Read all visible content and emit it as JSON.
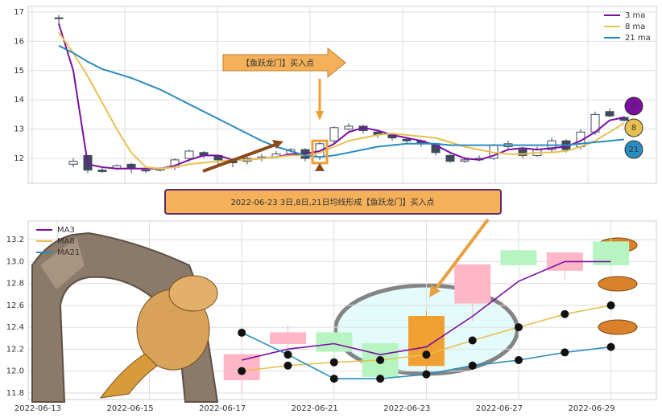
{
  "chart_data": [
    {
      "type": "candlestick",
      "open": [
        16.8,
        11.8,
        12.1,
        11.6,
        11.65,
        11.8,
        11.6,
        11.6,
        11.7,
        12.0,
        12.2,
        12.1,
        11.95,
        11.9,
        12.0,
        12.05,
        12.15,
        12.3,
        12.05,
        12.6,
        13.0,
        13.1,
        12.9,
        12.8,
        12.65,
        12.6,
        12.45,
        12.1,
        11.9,
        11.95,
        12.0,
        12.4,
        12.3,
        12.1,
        12.3,
        12.6,
        12.4,
        12.9,
        13.6,
        13.4
      ],
      "high": [
        16.9,
        12.0,
        12.1,
        11.7,
        11.8,
        11.85,
        11.7,
        11.7,
        12.0,
        12.3,
        12.25,
        12.1,
        12.0,
        12.05,
        12.15,
        12.25,
        12.35,
        12.35,
        12.55,
        13.1,
        13.2,
        13.15,
        12.95,
        12.85,
        12.7,
        12.65,
        12.5,
        12.15,
        12.05,
        12.1,
        12.5,
        12.6,
        12.35,
        12.4,
        12.7,
        12.65,
        13.0,
        13.6,
        13.7,
        13.45
      ],
      "low": [
        16.6,
        11.7,
        11.5,
        11.5,
        11.6,
        11.5,
        11.5,
        11.55,
        11.6,
        11.9,
        12.0,
        11.8,
        11.7,
        11.8,
        11.9,
        12.0,
        12.1,
        11.9,
        11.95,
        12.5,
        12.95,
        12.85,
        12.7,
        12.6,
        12.5,
        12.4,
        12.1,
        11.85,
        11.85,
        11.9,
        11.95,
        12.3,
        12.0,
        12.05,
        12.2,
        12.2,
        12.3,
        12.8,
        13.4,
        13.25
      ],
      "close": [
        16.8,
        11.9,
        11.6,
        11.55,
        11.75,
        11.65,
        11.6,
        11.65,
        11.95,
        12.25,
        12.1,
        11.95,
        11.85,
        12.0,
        12.05,
        12.15,
        12.3,
        12.0,
        12.5,
        13.05,
        13.1,
        12.95,
        12.8,
        12.7,
        12.6,
        12.5,
        12.2,
        11.9,
        11.95,
        12.0,
        12.45,
        12.5,
        12.1,
        12.3,
        12.6,
        12.3,
        12.9,
        13.5,
        13.45,
        13.3
      ],
      "up_color": "#ffffff",
      "down_color": "#3c4a5c",
      "series": [
        {
          "name": "3 ma",
          "color": "#7b0fa0",
          "values": [
            16.6,
            15.0,
            11.8,
            11.7,
            11.65,
            11.65,
            11.65,
            11.65,
            11.75,
            11.95,
            12.1,
            12.1,
            11.95,
            11.95,
            12.0,
            12.05,
            12.15,
            12.15,
            12.25,
            12.5,
            12.9,
            13.05,
            12.95,
            12.8,
            12.7,
            12.6,
            12.45,
            12.2,
            12.0,
            11.95,
            12.1,
            12.3,
            12.35,
            12.3,
            12.35,
            12.4,
            12.6,
            12.9,
            13.3,
            13.4
          ]
        },
        {
          "name": "8 ma",
          "color": "#e8c050",
          "values": [
            16.3,
            15.6,
            14.8,
            13.9,
            13.0,
            12.2,
            11.7,
            11.65,
            11.7,
            11.8,
            11.85,
            11.9,
            11.95,
            11.95,
            12.0,
            12.05,
            12.1,
            12.1,
            12.2,
            12.4,
            12.6,
            12.7,
            12.8,
            12.85,
            12.8,
            12.75,
            12.7,
            12.55,
            12.4,
            12.3,
            12.2,
            12.15,
            12.15,
            12.2,
            12.2,
            12.25,
            12.4,
            12.6,
            12.9,
            13.2
          ]
        },
        {
          "name": "21 ma",
          "color": "#2a8cc0",
          "values": [
            15.85,
            15.6,
            15.3,
            15.05,
            14.9,
            14.75,
            14.55,
            14.35,
            14.1,
            13.85,
            13.6,
            13.35,
            13.1,
            12.85,
            12.6,
            12.4,
            12.25,
            12.1,
            12.05,
            12.1,
            12.2,
            12.3,
            12.4,
            12.45,
            12.5,
            12.5,
            12.5,
            12.45,
            12.45,
            12.45,
            12.45,
            12.45,
            12.45,
            12.45,
            12.45,
            12.45,
            12.5,
            12.55,
            12.6,
            12.65
          ]
        }
      ],
      "ylim": [
        11.15,
        17.19
      ],
      "yticks": [
        12,
        13,
        14,
        15,
        16,
        17
      ],
      "grid": true,
      "legend": "upper right",
      "annotation": "【鱼跃龙门】买入点",
      "end_labels": [
        "3",
        "8",
        "21"
      ]
    },
    {
      "type": "candlestick",
      "title": "2022-06-23 3日,8日,21日均线形成【鱼跃龙门】买入点",
      "categories": [
        "2022-06-13",
        null,
        "2022-06-15",
        null,
        "2022-06-17",
        null,
        "2022-06-21",
        null,
        "2022-06-23",
        null,
        "2022-06-27",
        null,
        "2022-06-29",
        null
      ],
      "open": [
        null,
        null,
        null,
        null,
        11.92,
        12.25,
        12.35,
        12.25,
        12.05,
        12.62,
        13.1,
        12.92,
        13.18,
        null
      ],
      "high": [
        null,
        null,
        null,
        null,
        12.15,
        12.42,
        12.35,
        12.25,
        12.55,
        12.97,
        13.2,
        13.08,
        13.25,
        null
      ],
      "low": [
        null,
        null,
        null,
        null,
        11.8,
        12.2,
        12.1,
        11.95,
        11.95,
        12.45,
        12.9,
        12.83,
        12.95,
        null
      ],
      "close": [
        null,
        null,
        null,
        null,
        12.15,
        12.35,
        12.18,
        11.95,
        12.5,
        12.97,
        12.97,
        13.08,
        12.97,
        null
      ],
      "colors": [
        null,
        null,
        null,
        null,
        "#ffb6c6",
        "#ffb6c6",
        "#b6f5c2",
        "#b6f5c2",
        "#f0a030",
        "#ffb6c6",
        "#b6f5c2",
        "#ffb6c6",
        "#b6f5c2",
        null
      ],
      "series": [
        {
          "name": "MA3",
          "color": "#7b0fa0",
          "values": [
            null,
            null,
            null,
            null,
            12.1,
            12.2,
            12.25,
            12.15,
            12.22,
            12.5,
            12.82,
            13.0,
            13.0,
            null
          ]
        },
        {
          "name": "MA8",
          "color": "#e8c050",
          "markers": true,
          "values": [
            null,
            null,
            null,
            null,
            12.0,
            12.05,
            12.08,
            12.1,
            12.15,
            12.28,
            12.4,
            12.52,
            12.6,
            null
          ]
        },
        {
          "name": "MA21",
          "color": "#2a8cc0",
          "markers": true,
          "values": [
            null,
            null,
            null,
            null,
            12.35,
            12.15,
            11.93,
            11.93,
            11.97,
            12.05,
            12.1,
            12.17,
            12.22,
            null
          ]
        }
      ],
      "ylim": [
        11.74,
        13.37
      ],
      "yticks": [
        11.8,
        {
          "value": 12,
          "label": "12.0"
        },
        12.2,
        12.4,
        12.6,
        12.8,
        {
          "value": 13,
          "label": "13.0"
        },
        13.2
      ],
      "grid": true,
      "legend": "upper left"
    }
  ]
}
